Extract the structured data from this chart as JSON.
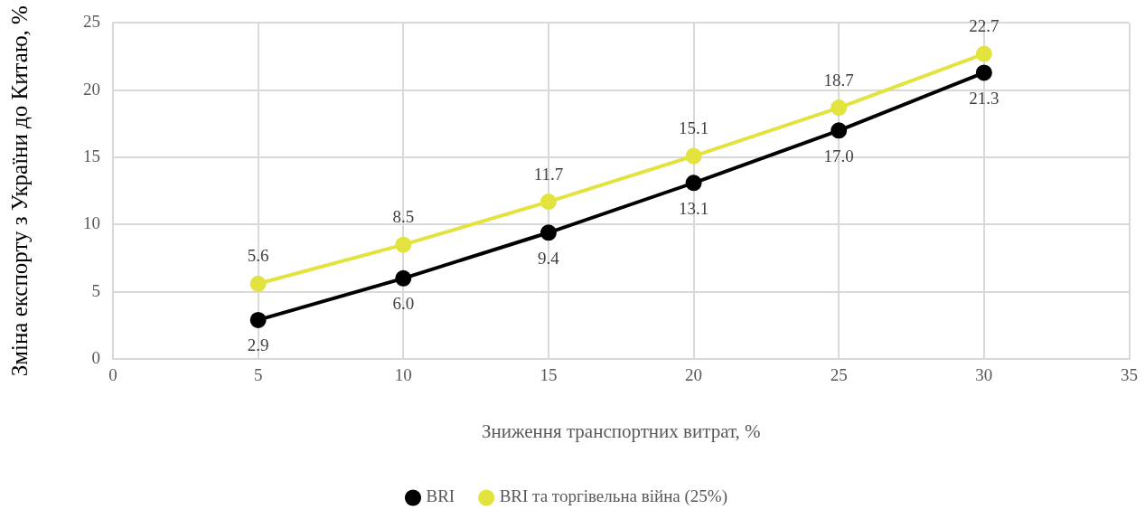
{
  "chart_data": {
    "type": "line",
    "xlabel": "Зниження транспортних витрат, %",
    "ylabel": "Зміна експорту з України до Китаю, %",
    "x": [
      5,
      10,
      15,
      20,
      25,
      30
    ],
    "series": [
      {
        "name": "BRI",
        "color": "#000000",
        "values": [
          2.9,
          6.0,
          9.4,
          13.1,
          17.0,
          21.3
        ],
        "value_labels": [
          "2.9",
          "6.0",
          "9.4",
          "13.1",
          "17.0",
          "21.3"
        ]
      },
      {
        "name": "BRI та торгівельна війна (25%)",
        "color": "#e3e33f",
        "values": [
          5.6,
          8.5,
          11.7,
          15.1,
          18.7,
          22.7
        ],
        "value_labels": [
          "5.6",
          "8.5",
          "11.7",
          "15.1",
          "18.7",
          "22.7"
        ]
      }
    ],
    "xlim": [
      0,
      35
    ],
    "xticks": [
      0,
      5,
      10,
      15,
      20,
      25,
      30,
      35
    ],
    "ylim": [
      0,
      25
    ],
    "yticks": [
      0,
      5,
      10,
      15,
      20,
      25
    ],
    "grid": true,
    "legend": "bottom",
    "marker": "circle",
    "line_style": "solid"
  }
}
